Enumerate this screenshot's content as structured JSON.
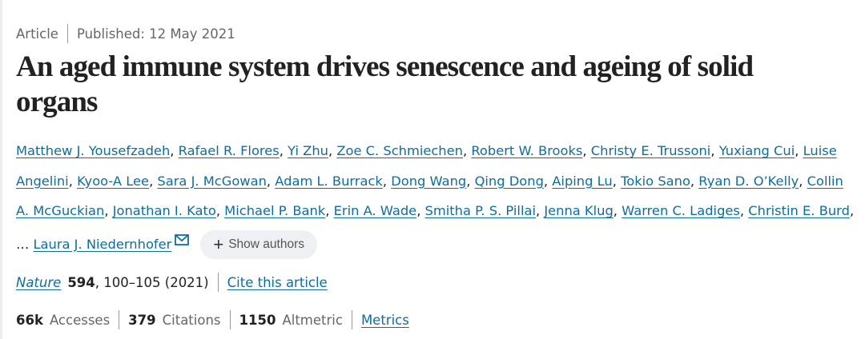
{
  "meta": {
    "type": "Article",
    "published": "Published: 12 May 2021"
  },
  "title": "An aged immune system drives senescence and ageing of solid organs",
  "authors": [
    "Matthew J. Yousefzadeh",
    "Rafael R. Flores",
    "Yi Zhu",
    "Zoe C. Schmiechen",
    "Robert W. Brooks",
    "Christy E. Trussoni",
    "Yuxiang Cui",
    "Luise Angelini",
    "Kyoo-A Lee",
    "Sara J. McGowan",
    "Adam L. Burrack",
    "Dong Wang",
    "Qing Dong",
    "Aiping Lu",
    "Tokio Sano",
    "Ryan D. O’Kelly",
    "Collin A. McGuckian",
    "Jonathan I. Kato",
    "Michael P. Bank",
    "Erin A. Wade",
    "Smitha P. S. Pillai",
    "Jenna Klug",
    "Warren C. Ladiges",
    "Christin E. Burd"
  ],
  "ellipsis": "…",
  "last_author": "Laura J. Niedernhofer",
  "last_author_icon": "envelope-icon",
  "show_authors": {
    "icon": "plus-icon",
    "label": "Show authors"
  },
  "citation": {
    "journal": "Nature",
    "volume": "594",
    "pages": ", 100–105 (2021)",
    "cite_link": "Cite this article"
  },
  "stats": {
    "accesses_value": "66k",
    "accesses_label": "Accesses",
    "citations_value": "379",
    "citations_label": "Citations",
    "altmetric_value": "1150",
    "altmetric_label": "Altmetric",
    "metrics_link": "Metrics"
  },
  "colors": {
    "link": "#0c6ea0",
    "text": "#222222",
    "muted": "#666666"
  }
}
